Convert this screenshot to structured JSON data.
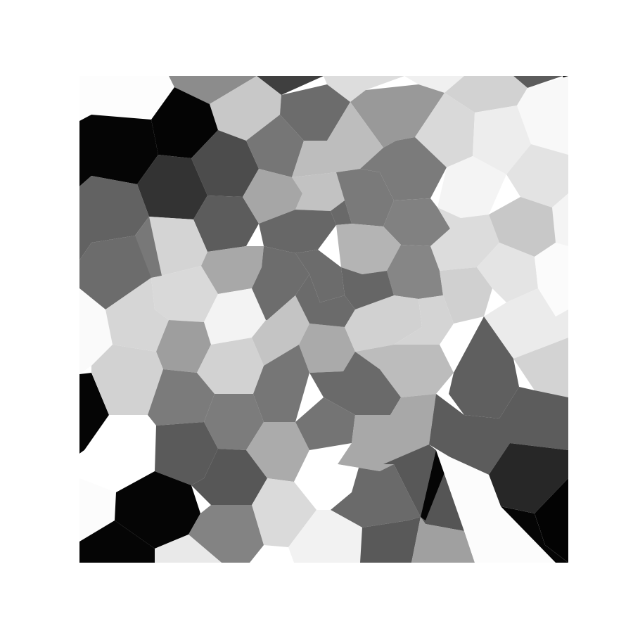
{
  "image": {
    "kind": "grayscale voronoi mosaic",
    "background_color": "#ffffff",
    "frame_color": "#000000"
  },
  "cells": [
    {
      "id": "c1",
      "shade": "#fdfdfd"
    },
    {
      "id": "c2",
      "shade": "#8c8c8c"
    },
    {
      "id": "c3",
      "shade": "#3f3f3f"
    },
    {
      "id": "c4",
      "shade": "#c8c8c8"
    },
    {
      "id": "c5",
      "shade": "#dddddd"
    },
    {
      "id": "c6",
      "shade": "#f0f0f0"
    },
    {
      "id": "c7",
      "shade": "#5c5c5c"
    },
    {
      "id": "c8",
      "shade": "#050505"
    },
    {
      "id": "c9",
      "shade": "#d2d2d2"
    },
    {
      "id": "c10",
      "shade": "#6c6c6c"
    },
    {
      "id": "c11",
      "shade": "#999999"
    },
    {
      "id": "c12",
      "shade": "#d9d9d9"
    },
    {
      "id": "c13",
      "shade": "#f8f8f8"
    },
    {
      "id": "c14",
      "shade": "#040404"
    },
    {
      "id": "c15",
      "shade": "#4c4c4c"
    },
    {
      "id": "c16",
      "shade": "#767676"
    },
    {
      "id": "c17",
      "shade": "#bdbdbd"
    },
    {
      "id": "c18",
      "shade": "#ededed"
    },
    {
      "id": "c19",
      "shade": "#050505"
    },
    {
      "id": "c20",
      "shade": "#333333"
    },
    {
      "id": "c21",
      "shade": "#c2c2c2"
    },
    {
      "id": "c22",
      "shade": "#7b7b7b"
    },
    {
      "id": "c23",
      "shade": "#f4f4f4"
    },
    {
      "id": "c24",
      "shade": "#e3e3e3"
    },
    {
      "id": "c25",
      "shade": "#5c5c5c"
    },
    {
      "id": "c26",
      "shade": "#a6a6a6"
    },
    {
      "id": "c27",
      "shade": "#7a7a7a"
    },
    {
      "id": "c28",
      "shade": "#818181"
    },
    {
      "id": "c29",
      "shade": "#f4f4f4"
    },
    {
      "id": "c30",
      "shade": "#676767"
    },
    {
      "id": "c31",
      "shade": "#696969"
    },
    {
      "id": "c32",
      "shade": "#b4b4b4"
    },
    {
      "id": "c33",
      "shade": "#dcdcdc"
    },
    {
      "id": "c34",
      "shade": "#c8c8c8"
    },
    {
      "id": "c35",
      "shade": "#626262"
    },
    {
      "id": "c36",
      "shade": "#d4d4d4"
    },
    {
      "id": "c37",
      "shade": "#787878"
    },
    {
      "id": "c38",
      "shade": "#6c6c6c"
    },
    {
      "id": "c39",
      "shade": "#d9d9d9"
    },
    {
      "id": "c40",
      "shade": "#a8a8a8"
    },
    {
      "id": "c41",
      "shade": "#f3f3f3"
    },
    {
      "id": "c42",
      "shade": "#fafafa"
    },
    {
      "id": "c43",
      "shade": "#d6d6d6"
    },
    {
      "id": "c44",
      "shade": "#9e9e9e"
    },
    {
      "id": "c45",
      "shade": "#d2d2d2"
    },
    {
      "id": "c46",
      "shade": "#6d6d6d"
    },
    {
      "id": "c47",
      "shade": "#6c6c6c"
    },
    {
      "id": "c48",
      "shade": "#868686"
    },
    {
      "id": "c49",
      "shade": "#d0d0d0"
    },
    {
      "id": "c50",
      "shade": "#e4e4e4"
    },
    {
      "id": "c51",
      "shade": "#fbfbfb"
    },
    {
      "id": "c52",
      "shade": "#ebebeb"
    },
    {
      "id": "c53",
      "shade": "#d3d3d3"
    },
    {
      "id": "c54",
      "shade": "#c4c4c4"
    },
    {
      "id": "c55",
      "shade": "#aaaaaa"
    },
    {
      "id": "c56",
      "shade": "#6b6b6b"
    },
    {
      "id": "c57",
      "shade": "#d1d1d1"
    },
    {
      "id": "c58",
      "shade": "#666666"
    },
    {
      "id": "c59",
      "shade": "#d4d4d4"
    },
    {
      "id": "c60",
      "shade": "#050505"
    },
    {
      "id": "c61",
      "shade": "#ffffff"
    },
    {
      "id": "c62",
      "shade": "#d2d2d2"
    },
    {
      "id": "c63",
      "shade": "#7b7b7b"
    },
    {
      "id": "c64",
      "shade": "#7c7c7c"
    },
    {
      "id": "c65",
      "shade": "#767676"
    },
    {
      "id": "c66",
      "shade": "#bcbcbc"
    },
    {
      "id": "c67",
      "shade": "#5f5f5f"
    },
    {
      "id": "c68",
      "shade": "#6a6a6a"
    },
    {
      "id": "c69",
      "shade": "#ababab"
    },
    {
      "id": "c70",
      "shade": "#747474"
    },
    {
      "id": "c71",
      "shade": "#a8a8a8"
    },
    {
      "id": "c72",
      "shade": "#5a5a5a"
    },
    {
      "id": "c73",
      "shade": "#575757"
    },
    {
      "id": "c74",
      "shade": "#5c5c5c"
    },
    {
      "id": "c75",
      "shade": "#ffffff"
    },
    {
      "id": "c76",
      "shade": "#fcfcfc"
    },
    {
      "id": "c77",
      "shade": "#050505"
    },
    {
      "id": "c78",
      "shade": "#6a6a6a"
    },
    {
      "id": "c79",
      "shade": "#dadada"
    },
    {
      "id": "c80",
      "shade": "#585858"
    },
    {
      "id": "c81",
      "shade": "#555555"
    },
    {
      "id": "c82",
      "shade": "#272727"
    },
    {
      "id": "c83",
      "shade": "#030303"
    },
    {
      "id": "c84",
      "shade": "#838383"
    },
    {
      "id": "c85",
      "shade": "#f2f2f2"
    },
    {
      "id": "c86",
      "shade": "#050505"
    },
    {
      "id": "c87",
      "shade": "#595959"
    },
    {
      "id": "c88",
      "shade": "#a0a0a0"
    },
    {
      "id": "c89",
      "shade": "#050505"
    },
    {
      "id": "c90",
      "shade": "#fcfcfc"
    },
    {
      "id": "c91",
      "shade": "#050505"
    },
    {
      "id": "c92",
      "shade": "#e9e9e9"
    }
  ]
}
